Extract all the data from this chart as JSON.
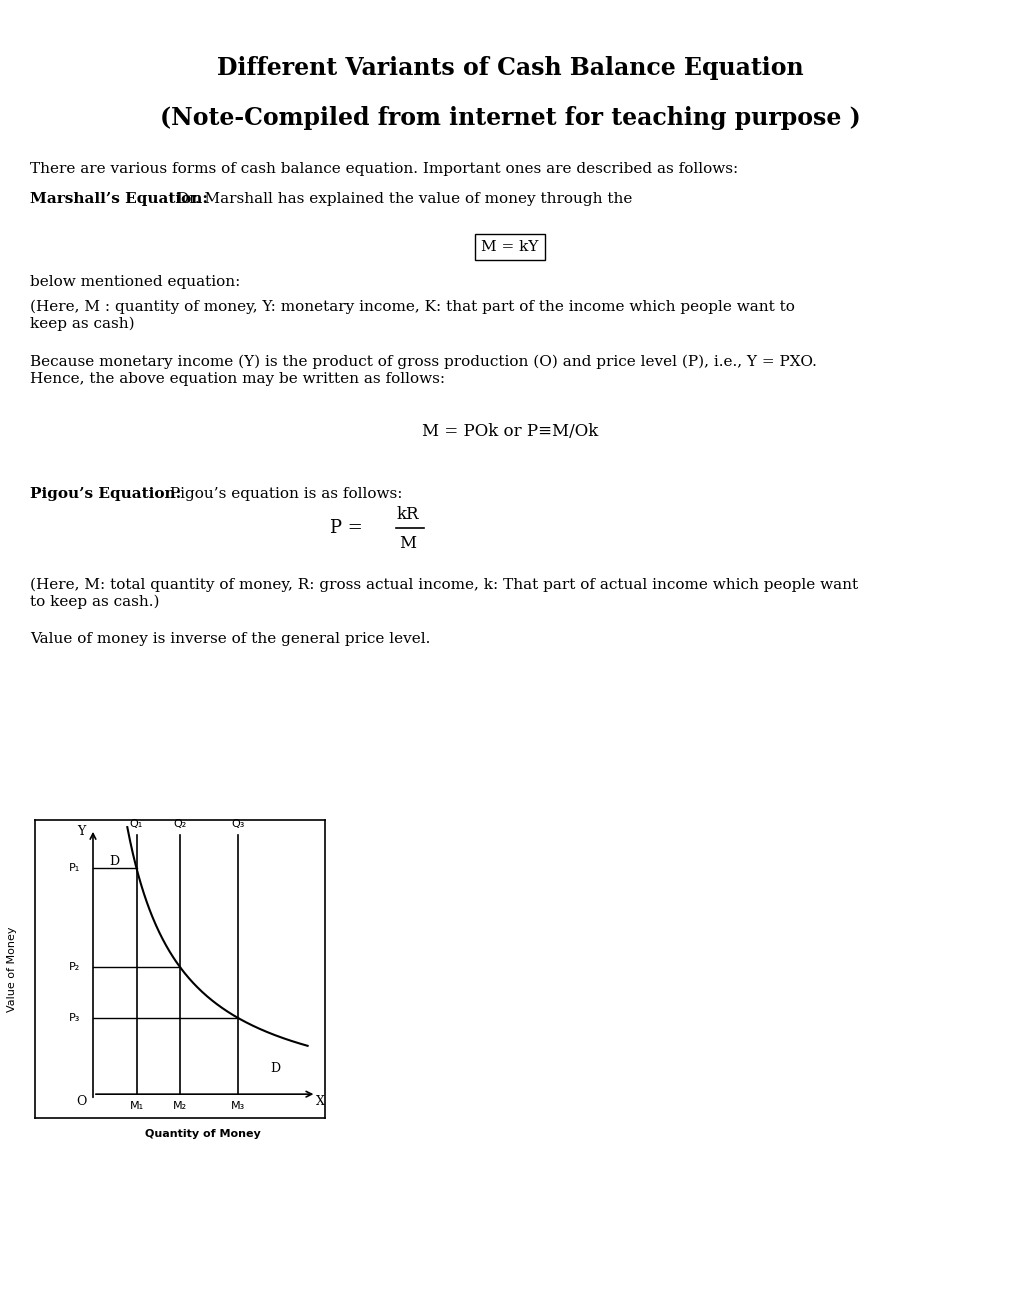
{
  "title": "Different Variants of Cash Balance Equation",
  "subtitle": "(Note-Compiled from internet for teaching purpose )",
  "bg_color": "#ffffff",
  "text_color": "#000000",
  "para1": "There are various forms of cash balance equation. Important ones are described as follows:",
  "para2_bold": "Marshall’s Equation:",
  "para2_rest": " Dr. Marshall has explained the value of money through the",
  "boxed_eq": "M = kY",
  "para3": "below mentioned equation:",
  "para4": "(Here, M : quantity of money, Y: monetary income, K: that part of the income which people want to\nkeep as cash)",
  "para5": "Because monetary income (Y) is the product of gross production (O) and price level (P), i.e., Y = PXO.\nHence, the above equation may be written as follows:",
  "eq2": "M = POk or P≡M/Ok",
  "para6_bold": "Pigou’s Equation:",
  "para6_rest": " Pigou’s equation is as follows:",
  "eq3_num": "kR",
  "eq3_den": "M",
  "para7": "(Here, M: total quantity of money, R: gross actual income, k: That part of actual income which people want\nto keep as cash.)",
  "para8": "Value of money is inverse of the general price level.",
  "graph_xlabel": "Quantity of Money",
  "graph_ylabel": "Value of Money"
}
